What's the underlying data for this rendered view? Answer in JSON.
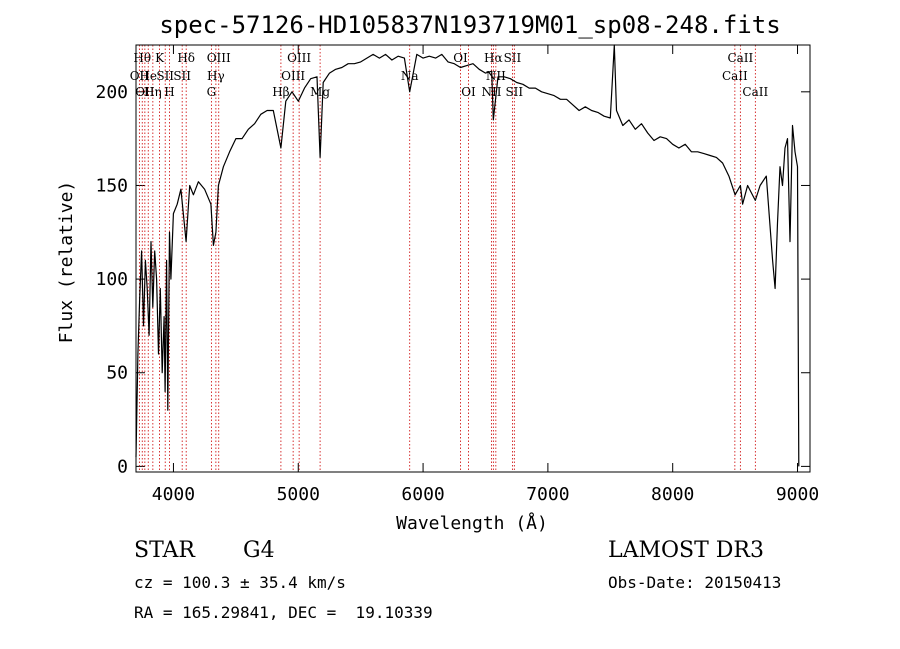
{
  "chart_data": {
    "type": "line",
    "title": "spec-57126-HD105837N193719M01_sp08-248.fits",
    "xlabel": "Wavelength (Å)",
    "ylabel": "Flux (relative)",
    "xlim": [
      3700,
      9100
    ],
    "ylim": [
      -3,
      225
    ],
    "x_ticks": [
      4000,
      5000,
      6000,
      7000,
      8000,
      9000
    ],
    "y_ticks": [
      0,
      50,
      100,
      150,
      200
    ],
    "grid": false,
    "line_color": "#000000",
    "marker_color": "#cc0000",
    "spectrum": {
      "x": [
        3700,
        3715,
        3730,
        3745,
        3760,
        3775,
        3790,
        3805,
        3820,
        3835,
        3850,
        3865,
        3880,
        3895,
        3910,
        3925,
        3933,
        3945,
        3955,
        3968,
        3980,
        4000,
        4030,
        4060,
        4101,
        4130,
        4160,
        4200,
        4250,
        4300,
        4320,
        4340,
        4360,
        4400,
        4450,
        4500,
        4550,
        4600,
        4650,
        4700,
        4750,
        4800,
        4861,
        4900,
        4950,
        5000,
        5050,
        5100,
        5150,
        5175,
        5200,
        5250,
        5300,
        5350,
        5400,
        5450,
        5500,
        5550,
        5600,
        5650,
        5700,
        5750,
        5800,
        5850,
        5893,
        5950,
        6000,
        6050,
        6100,
        6150,
        6200,
        6250,
        6300,
        6350,
        6400,
        6450,
        6500,
        6550,
        6563,
        6600,
        6650,
        6700,
        6750,
        6800,
        6850,
        6900,
        6950,
        7000,
        7050,
        7100,
        7150,
        7200,
        7250,
        7300,
        7350,
        7400,
        7450,
        7500,
        7532,
        7550,
        7600,
        7650,
        7700,
        7750,
        7800,
        7850,
        7900,
        7950,
        8000,
        8050,
        8100,
        8150,
        8200,
        8250,
        8300,
        8350,
        8400,
        8450,
        8500,
        8542,
        8560,
        8600,
        8662,
        8700,
        8750,
        8800,
        8820,
        8840,
        8860,
        8880,
        8900,
        8920,
        8940,
        8960,
        8980,
        9000,
        9010
      ],
      "y": [
        5,
        60,
        90,
        115,
        75,
        110,
        95,
        70,
        120,
        85,
        115,
        100,
        60,
        95,
        50,
        80,
        40,
        110,
        30,
        125,
        100,
        135,
        140,
        148,
        120,
        150,
        145,
        152,
        148,
        140,
        118,
        125,
        150,
        160,
        168,
        175,
        175,
        180,
        183,
        188,
        190,
        190,
        170,
        195,
        200,
        195,
        202,
        207,
        208,
        165,
        205,
        210,
        212,
        213,
        215,
        215,
        216,
        218,
        220,
        218,
        220,
        217,
        219,
        218,
        200,
        220,
        218,
        219,
        218,
        220,
        216,
        215,
        213,
        214,
        215,
        212,
        210,
        211,
        185,
        208,
        208,
        207,
        205,
        204,
        202,
        202,
        200,
        199,
        198,
        196,
        196,
        193,
        190,
        192,
        190,
        189,
        187,
        186,
        225,
        190,
        182,
        185,
        180,
        183,
        178,
        174,
        176,
        175,
        172,
        170,
        172,
        168,
        168,
        167,
        166,
        165,
        162,
        155,
        145,
        150,
        140,
        150,
        142,
        150,
        155,
        110,
        95,
        130,
        160,
        150,
        170,
        175,
        120,
        182,
        168,
        160,
        0
      ]
    },
    "lines": [
      {
        "wl": 3727,
        "label": "OII",
        "row": 2
      },
      {
        "wl": 3750,
        "label": "Hθ",
        "row": 1
      },
      {
        "wl": 3771,
        "label": "OII",
        "row": 3
      },
      {
        "wl": 3798,
        "label": "He",
        "row": 2
      },
      {
        "wl": 3835,
        "label": "Hη",
        "row": 3
      },
      {
        "wl": 3889,
        "label": "K",
        "row": 1
      },
      {
        "wl": 3934,
        "label": "SII",
        "row": 2
      },
      {
        "wl": 3968,
        "label": "H",
        "row": 3
      },
      {
        "wl": 4102,
        "label": "Hδ",
        "row": 1
      },
      {
        "wl": 4070,
        "label": "SII",
        "row": 2
      },
      {
        "wl": 4304,
        "label": "G",
        "row": 3
      },
      {
        "wl": 4340,
        "label": "Hγ",
        "row": 2
      },
      {
        "wl": 4363,
        "label": "OIII",
        "row": 1
      },
      {
        "wl": 4861,
        "label": "Hβ",
        "row": 3
      },
      {
        "wl": 4959,
        "label": "OIII",
        "row": 2
      },
      {
        "wl": 5007,
        "label": "OIII",
        "row": 1
      },
      {
        "wl": 5175,
        "label": "Mg",
        "row": 3
      },
      {
        "wl": 5893,
        "label": "Na",
        "row": 2
      },
      {
        "wl": 6300,
        "label": "OI",
        "row": 1
      },
      {
        "wl": 6364,
        "label": "OI",
        "row": 3
      },
      {
        "wl": 6548,
        "label": "NII",
        "row": 3
      },
      {
        "wl": 6563,
        "label": "Hα",
        "row": 1
      },
      {
        "wl": 6583,
        "label": "NII",
        "row": 2
      },
      {
        "wl": 6716,
        "label": "SII",
        "row": 1
      },
      {
        "wl": 6731,
        "label": "SII",
        "row": 3
      },
      {
        "wl": 8498,
        "label": "CaII",
        "row": 2
      },
      {
        "wl": 8542,
        "label": "CaII",
        "row": 1
      },
      {
        "wl": 8662,
        "label": "CaII",
        "row": 3
      }
    ]
  },
  "info": {
    "class": "STAR",
    "subclass": "G4",
    "survey": "LAMOST DR3",
    "cz": "cz = 100.3 ± 35.4 km/s",
    "obs_date": "Obs-Date: 20150413",
    "coords": "RA = 165.29841, DEC =  19.10339"
  }
}
